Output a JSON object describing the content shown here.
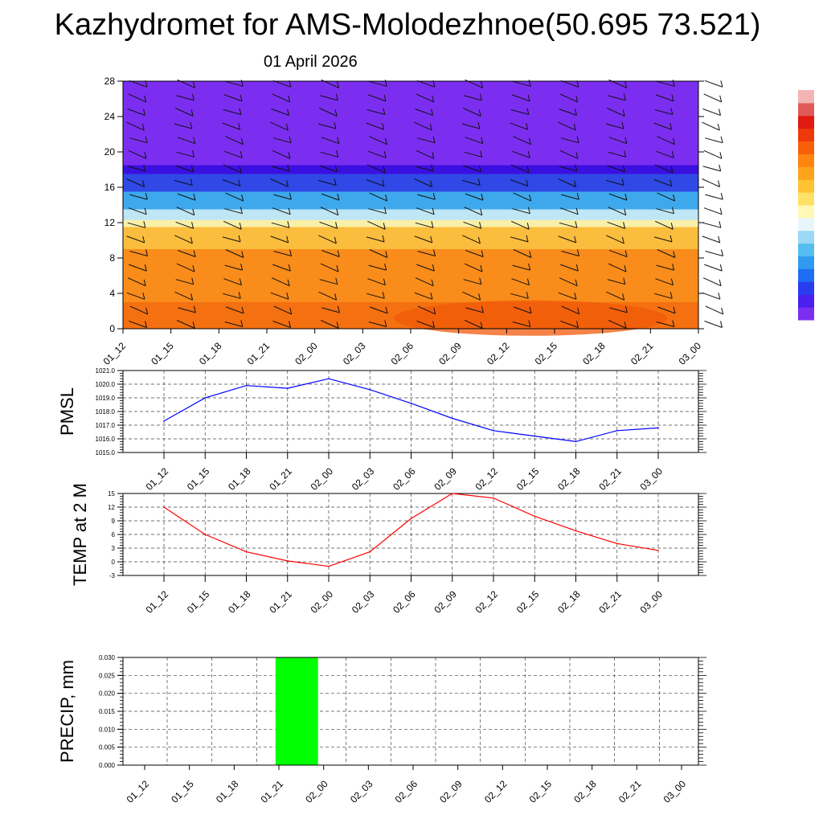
{
  "title": "Kazhydromet for AMS-Molodezhnoe(50.695 73.521)",
  "subtitle": "01 April 2026",
  "time_labels": [
    "01_12",
    "01_15",
    "01_18",
    "01_21",
    "02_00",
    "02_03",
    "02_06",
    "02_09",
    "02_12",
    "02_15",
    "02_18",
    "02_21",
    "03_00"
  ],
  "chart_data": [
    {
      "type": "heatmap",
      "name": "wind-temperature-cross-section",
      "x": [
        "01_12",
        "01_15",
        "01_18",
        "01_21",
        "02_00",
        "02_03",
        "02_06",
        "02_09",
        "02_12",
        "02_15",
        "02_18",
        "02_21",
        "03_00"
      ],
      "y_ticks": [
        0,
        4,
        8,
        12,
        16,
        20,
        24,
        28
      ],
      "ylim": [
        0,
        28
      ],
      "color_bands": [
        {
          "from": 0,
          "to": 3,
          "color": "#f47010"
        },
        {
          "from": 3,
          "to": 9,
          "color": "#f98c1a"
        },
        {
          "from": 9,
          "to": 11.5,
          "color": "#fbbd3d"
        },
        {
          "from": 11.5,
          "to": 12.3,
          "color": "#f8f0a8"
        },
        {
          "from": 12.3,
          "to": 13.5,
          "color": "#bfe6f4"
        },
        {
          "from": 13.5,
          "to": 15.5,
          "color": "#3ea8ec"
        },
        {
          "from": 15.5,
          "to": 17.5,
          "color": "#2f48e6"
        },
        {
          "from": 17.5,
          "to": 18.5,
          "color": "#3a10e0"
        },
        {
          "from": 18.5,
          "to": 28,
          "color": "#7c2ef0"
        }
      ],
      "hot_core_color": "#f25a0a",
      "wind_barbs": true,
      "colorbar": [
        "#7c2ef0",
        "#4a1ff0",
        "#2a3cf0",
        "#1f6df2",
        "#2f9af0",
        "#55bdf2",
        "#9ad8f6",
        "#e8f6fb",
        "#fff9b5",
        "#ffe066",
        "#ffc233",
        "#ffa31a",
        "#ff8510",
        "#f86008",
        "#ee3a0a",
        "#e01a10",
        "#e05a5a",
        "#f4b4b4"
      ]
    },
    {
      "type": "line",
      "name": "pmsl",
      "ylabel": "PMSL",
      "x": [
        "01_12",
        "01_15",
        "01_18",
        "01_21",
        "02_00",
        "02_03",
        "02_06",
        "02_09",
        "02_12",
        "02_15",
        "02_18",
        "02_21",
        "03_00"
      ],
      "values": [
        1017.3,
        1019.0,
        1019.9,
        1019.7,
        1020.4,
        1019.6,
        1018.6,
        1017.5,
        1016.6,
        1016.2,
        1015.8,
        1016.6,
        1016.8
      ],
      "ylim": [
        1015.0,
        1021.0
      ],
      "y_ticks": [
        "1015.0",
        "1016.0",
        "1017.0",
        "1018.0",
        "1019.0",
        "1020.0",
        "1021.0"
      ],
      "color": "#0000ff",
      "grid": true
    },
    {
      "type": "line",
      "name": "temp-2m",
      "ylabel": "TEMP at 2 M",
      "x": [
        "01_12",
        "01_15",
        "01_18",
        "01_21",
        "02_00",
        "02_03",
        "02_06",
        "02_09",
        "02_12",
        "02_15",
        "02_18",
        "02_21",
        "03_00"
      ],
      "values": [
        12.0,
        6.0,
        2.2,
        0.2,
        -1.0,
        2.2,
        9.5,
        15.0,
        14.0,
        10.0,
        6.8,
        4.0,
        2.5
      ],
      "ylim": [
        -3,
        15
      ],
      "y_ticks": [
        "-3",
        "0",
        "3",
        "6",
        "9",
        "12",
        "15"
      ],
      "color": "#ff0000",
      "grid": true
    },
    {
      "type": "bar",
      "name": "precip",
      "ylabel": "PRECIP, mm",
      "x": [
        "01_12",
        "01_15",
        "01_18",
        "01_21",
        "02_00",
        "02_03",
        "02_06",
        "02_09",
        "02_12",
        "02_15",
        "02_18",
        "02_21",
        "03_00"
      ],
      "values": [
        0,
        0,
        0,
        0,
        0.03,
        0,
        0,
        0,
        0,
        0,
        0,
        0,
        0
      ],
      "ylim": [
        0,
        0.03
      ],
      "y_ticks": [
        "0.000",
        "0.005",
        "0.010",
        "0.015",
        "0.020",
        "0.025",
        "0.030"
      ],
      "color": "#00ff00",
      "grid": true
    }
  ]
}
